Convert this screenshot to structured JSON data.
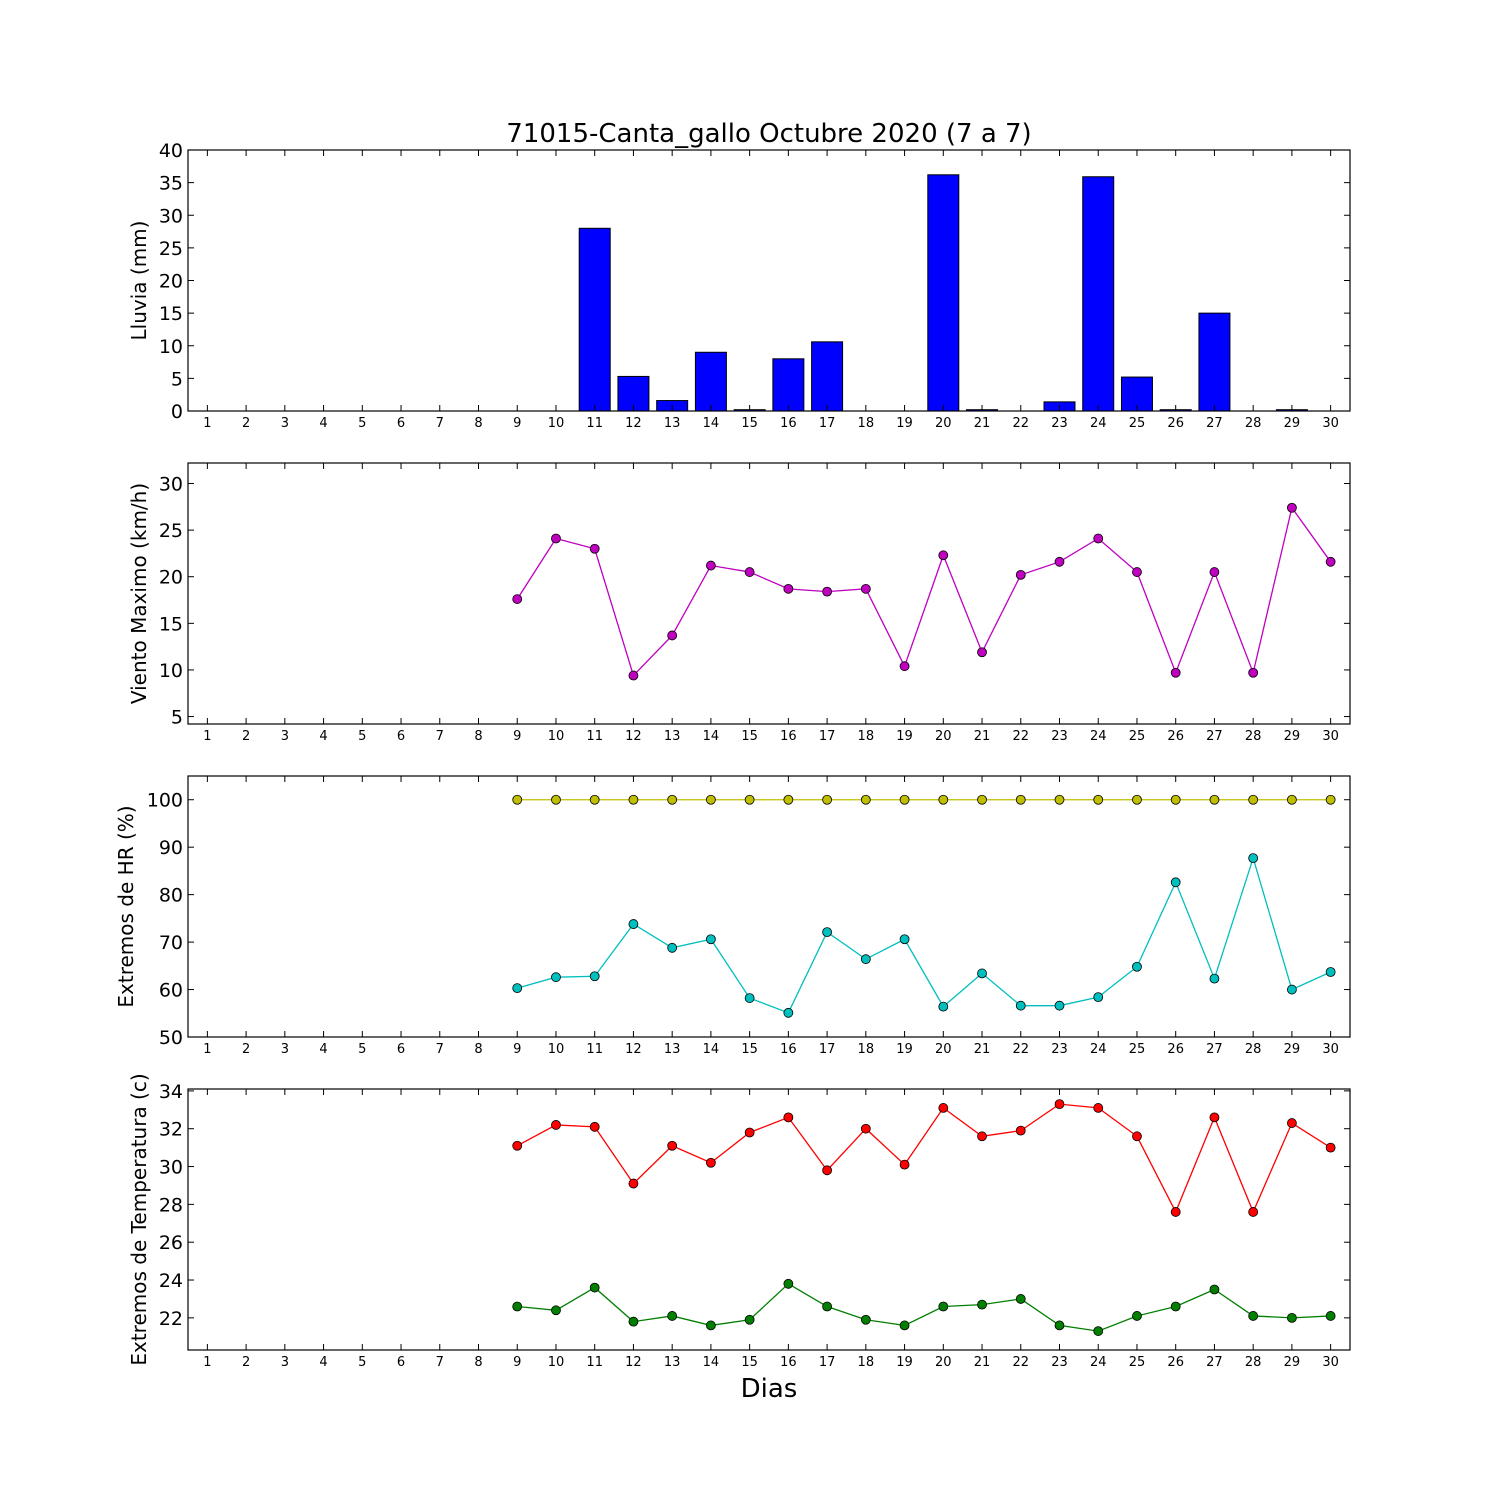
{
  "title": "71015-Canta_gallo Octubre 2020  (7 a 7)",
  "xlabel": "Dias",
  "days": [
    1,
    2,
    3,
    4,
    5,
    6,
    7,
    8,
    9,
    10,
    11,
    12,
    13,
    14,
    15,
    16,
    17,
    18,
    19,
    20,
    21,
    22,
    23,
    24,
    25,
    26,
    27,
    28,
    29,
    30
  ],
  "chart_data": [
    {
      "type": "bar",
      "ylabel": "Lluvia (mm)",
      "ylim": [
        0,
        40
      ],
      "yticks": [
        0,
        5,
        10,
        15,
        20,
        25,
        30,
        35,
        40
      ],
      "color": "#0000ff",
      "series": [
        {
          "values": [
            0,
            0,
            0,
            0,
            0,
            0,
            0,
            0,
            0,
            0,
            28,
            5.3,
            1.6,
            9,
            0.2,
            8,
            10.6,
            0,
            0,
            36.2,
            0.2,
            0,
            1.4,
            35.9,
            5.2,
            0.2,
            15,
            0,
            0.2,
            0
          ]
        }
      ]
    },
    {
      "type": "line",
      "ylabel": "Viento Maximo (km/h)",
      "ylim": [
        4.2,
        32.2
      ],
      "yticks": [
        5,
        10,
        15,
        20,
        25,
        30
      ],
      "series": [
        {
          "color": "#bf00bf",
          "x": [
            9,
            10,
            11,
            12,
            13,
            14,
            15,
            16,
            17,
            18,
            19,
            20,
            21,
            22,
            23,
            24,
            25,
            26,
            27,
            28,
            29,
            30
          ],
          "values": [
            17.6,
            24.1,
            23.0,
            9.4,
            13.7,
            21.2,
            20.5,
            18.7,
            18.4,
            18.7,
            10.4,
            22.3,
            11.9,
            20.2,
            21.6,
            24.1,
            20.5,
            9.7,
            20.5,
            9.7,
            27.4,
            21.6
          ]
        }
      ]
    },
    {
      "type": "line",
      "ylabel": "Extremos de HR (%)",
      "ylim": [
        50,
        105
      ],
      "yticks": [
        50,
        60,
        70,
        80,
        90,
        100
      ],
      "series": [
        {
          "color": "#bfbf00",
          "x": [
            9,
            10,
            11,
            12,
            13,
            14,
            15,
            16,
            17,
            18,
            19,
            20,
            21,
            22,
            23,
            24,
            25,
            26,
            27,
            28,
            29,
            30
          ],
          "values": [
            100,
            100,
            100,
            100,
            100,
            100,
            100,
            100,
            100,
            100,
            100,
            100,
            100,
            100,
            100,
            100,
            100,
            100,
            100,
            100,
            100,
            100
          ]
        },
        {
          "color": "#00bfbf",
          "x": [
            9,
            10,
            11,
            12,
            13,
            14,
            15,
            16,
            17,
            18,
            19,
            20,
            21,
            22,
            23,
            24,
            25,
            26,
            27,
            28,
            29,
            30
          ],
          "values": [
            60.3,
            62.6,
            62.8,
            73.8,
            68.8,
            70.6,
            58.2,
            55.1,
            72.1,
            66.4,
            70.6,
            56.4,
            63.4,
            56.6,
            56.6,
            58.4,
            64.8,
            82.6,
            62.3,
            87.7,
            60.0,
            63.7
          ]
        }
      ]
    },
    {
      "type": "line",
      "ylabel": "Extremos de Temperatura (c)",
      "ylim": [
        20.3,
        34.1
      ],
      "yticks": [
        22,
        24,
        26,
        28,
        30,
        32,
        34
      ],
      "series": [
        {
          "color": "#ff0000",
          "x": [
            9,
            10,
            11,
            12,
            13,
            14,
            15,
            16,
            17,
            18,
            19,
            20,
            21,
            22,
            23,
            24,
            25,
            26,
            27,
            28,
            29,
            30
          ],
          "values": [
            31.1,
            32.2,
            32.1,
            29.1,
            31.1,
            30.2,
            31.8,
            32.6,
            29.8,
            32.0,
            30.1,
            33.1,
            31.6,
            31.9,
            33.3,
            33.1,
            31.6,
            27.6,
            32.6,
            27.6,
            32.3,
            31.0
          ]
        },
        {
          "color": "#007f00",
          "x": [
            9,
            10,
            11,
            12,
            13,
            14,
            15,
            16,
            17,
            18,
            19,
            20,
            21,
            22,
            23,
            24,
            25,
            26,
            27,
            28,
            29,
            30
          ],
          "values": [
            22.6,
            22.4,
            23.6,
            21.8,
            22.1,
            21.6,
            21.9,
            23.8,
            22.6,
            21.9,
            21.6,
            22.6,
            22.7,
            23.0,
            21.6,
            21.3,
            22.1,
            22.6,
            23.5,
            22.1,
            22.0,
            22.1
          ]
        }
      ]
    }
  ]
}
